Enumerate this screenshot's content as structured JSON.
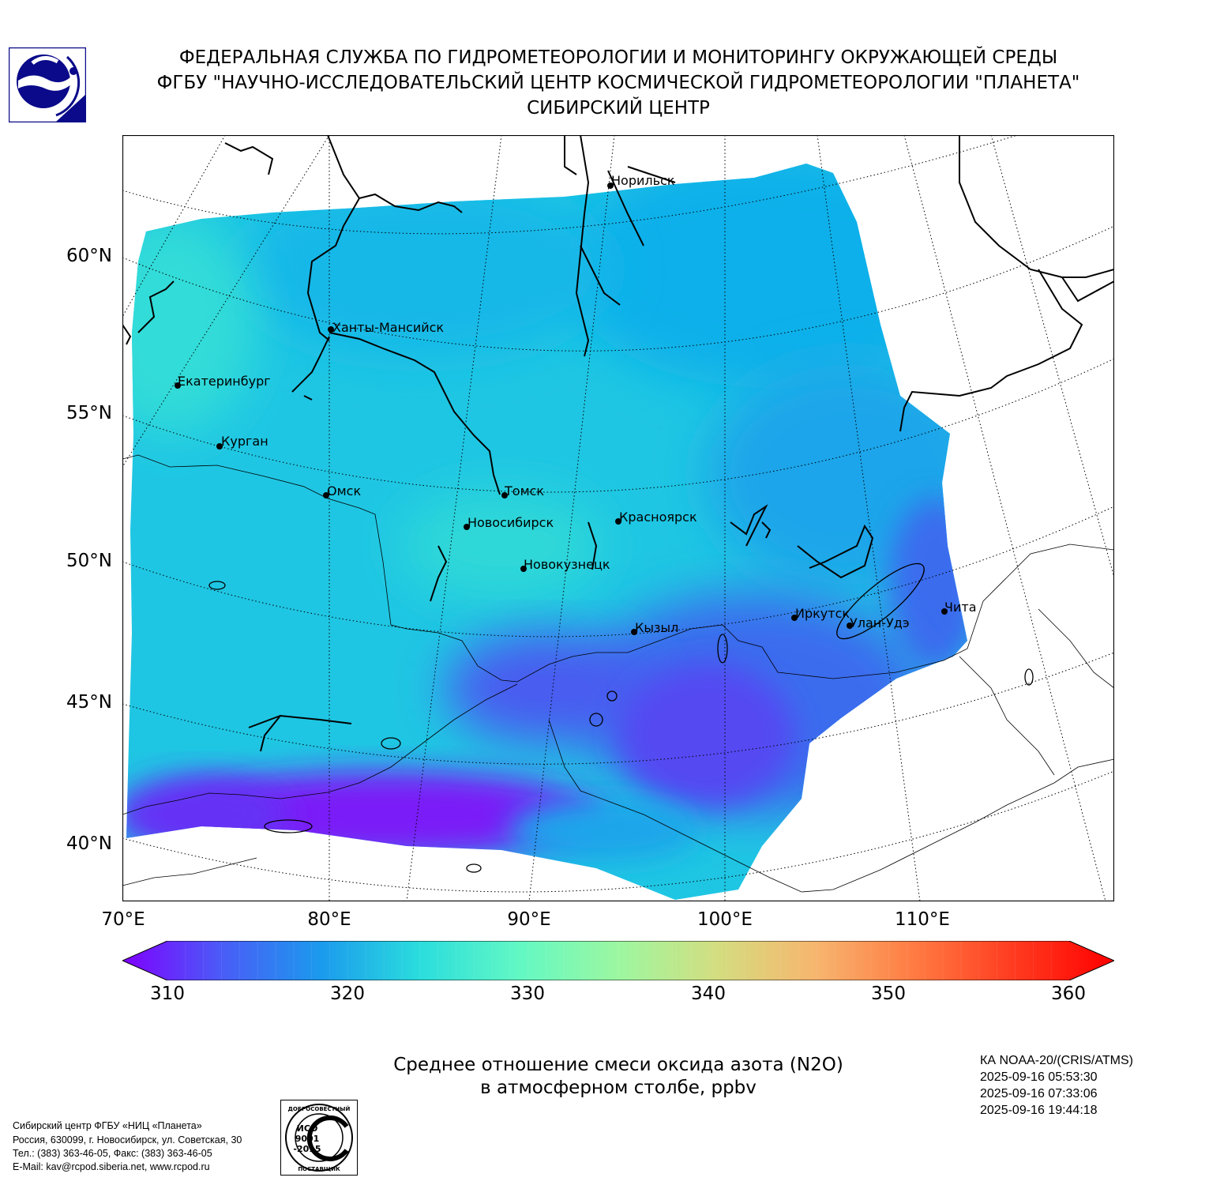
{
  "header": {
    "line1": "ФЕДЕРАЛЬНАЯ СЛУЖБА ПО ГИДРОМЕТЕОРОЛОГИИ И МОНИТОРИНГУ ОКРУЖАЮЩЕЙ СРЕДЫ",
    "line2": "ФГБУ \"НАУЧНО-ИССЛЕДОВАТЕЛЬСКИЙ ЦЕНТР КОСМИЧЕСКОЙ ГИДРОМЕТЕОРОЛОГИИ \"ПЛАНЕТА\"",
    "line3": "СИБИРСКИЙ ЦЕНТР"
  },
  "map": {
    "lat_labels": [
      "60°N",
      "55°N",
      "50°N",
      "45°N",
      "40°N"
    ],
    "lon_labels": [
      "70°E",
      "80°E",
      "90°E",
      "100°E",
      "110°E"
    ],
    "cities": [
      "Норильск",
      "Ханты-Мансийск",
      "Екатеринбург",
      "Курган",
      "Омск",
      "Томск",
      "Новосибирск",
      "Красноярск",
      "Новокузнецк",
      "Иркутск",
      "Кызыл",
      "Улан-Удэ",
      "Чита"
    ]
  },
  "colorbar": {
    "min": 310,
    "max": 360,
    "ticks": [
      "310",
      "320",
      "330",
      "340",
      "350",
      "360"
    ],
    "colors": [
      "#7f00ff",
      "#4a5cf7",
      "#1b9aed",
      "#2adddd",
      "#62f8c4",
      "#9cf7a0",
      "#d4dd80",
      "#f7b56e",
      "#ff7a42",
      "#ff3a1f",
      "#ff0000"
    ]
  },
  "caption": {
    "line1": "Среднее отношение смеси оксида азота (N2O)",
    "line2": "в атмосферном столбе, ppbv"
  },
  "satellite": {
    "name": "КА NOAA-20/(CRIS/ATMS)",
    "times": [
      "2025-09-16 05:53:30",
      "2025-09-16 07:33:06",
      "2025-09-16 19:44:18"
    ]
  },
  "footer": {
    "org": "Сибирский центр ФГБУ «НИЦ «Планета»",
    "address": "Россия, 630099, г. Новосибирск, ул. Советская, 30",
    "phone": "Тел.: (383) 363-46-05, Факс: (383) 363-46-05",
    "email": "E-Mail: kav@rcpod.siberia.net, www.rcpod.ru"
  },
  "badge": {
    "top": "ДОБРОСОВЕСТНЫЙ",
    "iso1": "ИСО",
    "iso2": "9001",
    "iso3": "-2015",
    "bottom": "ПОСТАВЩИК"
  }
}
